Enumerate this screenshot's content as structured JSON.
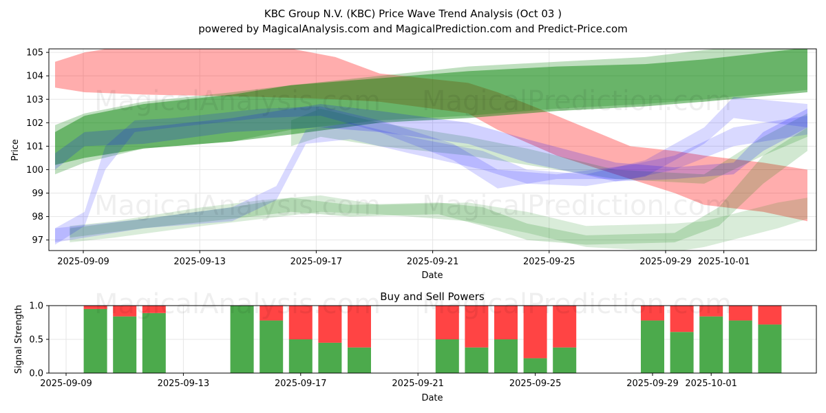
{
  "title": "KBC Group N.V. (KBC) Price Wave Trend Analysis (Oct 03 )",
  "subtitle": "powered by MagicalAnalysis.com and MagicalPrediction.com and Predict-Price.com",
  "watermarks": [
    "MagicalAnalysis.com",
    "MagicalPrediction.com"
  ],
  "colors": {
    "red": "#ff0000",
    "green": "#008000",
    "blue": "#0000ff",
    "buy": "#4caa4c",
    "sell": "#ff4444"
  },
  "chart_data": [
    {
      "type": "area",
      "title": "",
      "xlabel": "Date",
      "ylabel": "Price",
      "xlim": [
        "2025-09-07.7",
        "2025-10-04.9"
      ],
      "ylim": [
        96.55,
        105.15
      ],
      "x_ticks": [
        "2025-09-09",
        "2025-09-13",
        "2025-09-17",
        "2025-09-21",
        "2025-09-25",
        "2025-09-29",
        "2025-10-01"
      ],
      "y_ticks": [
        97,
        98,
        99,
        100,
        101,
        102,
        103,
        104,
        105
      ],
      "grid": true,
      "series": [
        {
          "name": "red-wave",
          "color": "red",
          "opacity": 0.32,
          "points": [
            [
              0,
              104.6,
              103.5
            ],
            [
              1,
              105.0,
              103.3
            ],
            [
              3,
              105.4,
              103.2
            ],
            [
              7,
              105.4,
              103.1
            ],
            [
              9.5,
              104.8,
              103.0
            ],
            [
              11,
              104.1,
              102.9
            ],
            [
              14,
              103.7,
              102.4
            ],
            [
              15,
              103.3,
              101.7
            ],
            [
              17,
              102.3,
              100.6
            ],
            [
              19.5,
              101.0,
              99.6
            ],
            [
              21,
              100.8,
              99.0
            ],
            [
              22,
              100.6,
              98.5
            ],
            [
              24,
              100.3,
              98.2
            ],
            [
              25.5,
              100.0,
              97.8
            ]
          ]
        },
        {
          "name": "green-wave-1",
          "color": "green",
          "opacity": 0.45,
          "points": [
            [
              0,
              101.6,
              100.2
            ],
            [
              1,
              102.3,
              100.5
            ],
            [
              3,
              102.8,
              100.9
            ],
            [
              6,
              103.2,
              101.2
            ],
            [
              8,
              103.6,
              101.5
            ],
            [
              11,
              103.9,
              102.0
            ],
            [
              14,
              104.2,
              102.2
            ],
            [
              17,
              104.4,
              102.5
            ],
            [
              20,
              104.5,
              102.7
            ],
            [
              22,
              104.7,
              102.9
            ],
            [
              25.5,
              105.2,
              103.3
            ]
          ]
        },
        {
          "name": "green-wave-2",
          "color": "green",
          "opacity": 0.25,
          "points": [
            [
              0,
              101.9,
              99.8
            ],
            [
              1,
              102.4,
              100.3
            ],
            [
              3,
              102.9,
              100.9
            ],
            [
              6,
              103.3,
              101.2
            ],
            [
              8,
              103.6,
              101.7
            ],
            [
              11,
              104.0,
              102.1
            ],
            [
              14,
              104.4,
              102.3
            ],
            [
              17,
              104.6,
              102.6
            ],
            [
              20,
              104.8,
              102.8
            ],
            [
              22,
              105.1,
              103.0
            ],
            [
              25.5,
              105.5,
              103.4
            ]
          ]
        },
        {
          "name": "green-wave-3",
          "color": "green",
          "opacity": 0.15,
          "points": [
            [
              0.5,
              97.6,
              96.9
            ],
            [
              2,
              97.8,
              97.1
            ],
            [
              5,
              98.4,
              97.6
            ],
            [
              7,
              98.7,
              97.9
            ],
            [
              9,
              98.9,
              98.2
            ],
            [
              11,
              98.5,
              98.1
            ],
            [
              14,
              98.6,
              97.8
            ],
            [
              16,
              98.2,
              97.3
            ],
            [
              18,
              97.6,
              96.7
            ],
            [
              21,
              97.7,
              96.5
            ],
            [
              22,
              97.8,
              96.7
            ],
            [
              24.5,
              98.6,
              97.5
            ],
            [
              25.5,
              98.8,
              97.9
            ]
          ]
        },
        {
          "name": "green-wave-4",
          "color": "green",
          "opacity": 0.18,
          "points": [
            [
              0.5,
              97.5,
              97.1
            ],
            [
              3,
              97.9,
              97.5
            ],
            [
              6,
              98.4,
              97.9
            ],
            [
              8,
              98.8,
              98.2
            ],
            [
              10,
              98.5,
              98.0
            ],
            [
              13,
              98.6,
              98.1
            ],
            [
              14.5,
              98.4,
              97.6
            ],
            [
              16,
              97.7,
              97.0
            ],
            [
              18,
              97.2,
              96.8
            ],
            [
              21,
              97.3,
              96.9
            ],
            [
              22.5,
              98.4,
              97.6
            ],
            [
              24,
              100.6,
              99.4
            ],
            [
              25.5,
              101.8,
              100.8
            ]
          ]
        },
        {
          "name": "green-wave-5",
          "color": "green",
          "opacity": 0.18,
          "points": [
            [
              8,
              102.1,
              101.0
            ],
            [
              9,
              102.6,
              101.4
            ],
            [
              11,
              102.0,
              101.0
            ],
            [
              14,
              101.4,
              100.6
            ],
            [
              16,
              100.9,
              100.2
            ],
            [
              19,
              100.0,
              99.6
            ],
            [
              22,
              99.8,
              99.4
            ],
            [
              24,
              101.4,
              100.6
            ],
            [
              25.5,
              102.4,
              101.4
            ]
          ]
        },
        {
          "name": "blue-wave-1",
          "color": "blue",
          "opacity": 0.18,
          "points": [
            [
              0,
              100.7,
              100.0
            ],
            [
              1,
              101.6,
              101.0
            ],
            [
              3,
              101.8,
              101.1
            ],
            [
              6,
              102.2,
              101.6
            ],
            [
              9,
              102.8,
              101.8
            ],
            [
              11,
              102.5,
              101.6
            ],
            [
              14,
              102.0,
              101.1
            ],
            [
              16,
              101.3,
              100.3
            ],
            [
              19,
              100.3,
              99.5
            ],
            [
              21,
              100.1,
              99.6
            ],
            [
              23,
              100.3,
              99.8
            ],
            [
              24,
              101.6,
              100.8
            ],
            [
              25.5,
              102.6,
              101.8
            ]
          ]
        },
        {
          "name": "blue-wave-2",
          "color": "blue",
          "opacity": 0.15,
          "points": [
            [
              0,
              97.5,
              96.8
            ],
            [
              1,
              98.2,
              97.6
            ],
            [
              1.7,
              101.0,
              100.0
            ],
            [
              2.7,
              102.1,
              101.6
            ],
            [
              4,
              102.2,
              101.8
            ],
            [
              7,
              102.6,
              102.2
            ],
            [
              9,
              102.7,
              102.3
            ],
            [
              11,
              102.1,
              101.6
            ],
            [
              13.5,
              101.1,
              100.4
            ],
            [
              15,
              100.0,
              99.2
            ],
            [
              17,
              99.8,
              99.6
            ],
            [
              19.5,
              100.2,
              99.6
            ],
            [
              21,
              100.6,
              100.0
            ],
            [
              23,
              101.8,
              101.0
            ],
            [
              25.5,
              102.3,
              101.5
            ]
          ]
        },
        {
          "name": "blue-wave-3",
          "color": "blue",
          "opacity": 0.15,
          "points": [
            [
              0,
              97.5,
              96.9
            ],
            [
              3,
              97.9,
              97.5
            ],
            [
              6,
              98.4,
              97.8
            ],
            [
              7.5,
              99.3,
              98.7
            ],
            [
              8.5,
              101.7,
              101.1
            ],
            [
              10,
              102.0,
              101.3
            ],
            [
              12,
              101.4,
              100.7
            ],
            [
              14.5,
              100.8,
              100.0
            ],
            [
              16,
              100.0,
              99.4
            ],
            [
              18,
              99.8,
              99.3
            ],
            [
              20,
              100.4,
              99.7
            ],
            [
              22,
              101.8,
              101.1
            ],
            [
              23,
              103.1,
              102.2
            ],
            [
              25.5,
              102.8,
              101.8
            ]
          ]
        }
      ]
    },
    {
      "type": "bar",
      "title": "Buy and Sell Powers",
      "xlabel": "Date",
      "ylabel": "Signal Strength",
      "ylim": [
        0,
        1
      ],
      "y_ticks": [
        "0.0",
        "0.5",
        "1.0"
      ],
      "x_ticks": [
        "2025-09-09",
        "2025-09-13",
        "2025-09-17",
        "2025-09-21",
        "2025-09-25",
        "2025-09-29",
        "2025-10-01"
      ],
      "categories": [
        "2025-09-10",
        "2025-09-11",
        "2025-09-12",
        "2025-09-15",
        "2025-09-16",
        "2025-09-17",
        "2025-09-18",
        "2025-09-19",
        "2025-09-22",
        "2025-09-23",
        "2025-09-24",
        "2025-09-25",
        "2025-09-26",
        "2025-09-29",
        "2025-09-30",
        "2025-10-01",
        "2025-10-02",
        "2025-10-03"
      ],
      "series": [
        {
          "name": "Buy",
          "values": [
            0.95,
            0.84,
            0.89,
            1.0,
            0.78,
            0.5,
            0.45,
            0.38,
            0.5,
            0.38,
            0.5,
            0.22,
            0.38,
            0.78,
            0.61,
            0.84,
            0.78,
            0.72
          ]
        },
        {
          "name": "Sell",
          "values": [
            0.05,
            0.16,
            0.11,
            0.0,
            0.22,
            0.5,
            0.55,
            0.62,
            0.5,
            0.62,
            0.5,
            0.78,
            0.62,
            0.22,
            0.39,
            0.16,
            0.22,
            0.28
          ]
        }
      ]
    }
  ]
}
